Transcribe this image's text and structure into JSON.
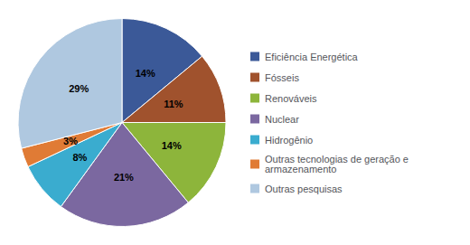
{
  "chart_data": {
    "type": "pie",
    "categories": [
      "Eficiência Energética",
      "Fósseis",
      "Renováveis",
      "Nuclear",
      "Hidrogênio",
      "Outras tecnologias de geração e\narmazenamento",
      "Outras pesquisas"
    ],
    "values": [
      14,
      11,
      14,
      21,
      8,
      3,
      29
    ],
    "value_labels": [
      "14%",
      "11%",
      "14%",
      "21%",
      "8%",
      "3%",
      "29%"
    ],
    "colors": [
      "#3B5998",
      "#A0522D",
      "#8DB53B",
      "#7B68A0",
      "#3AACCF",
      "#E07B35",
      "#AFC8E0"
    ],
    "data_labels": true,
    "legend": "right"
  }
}
